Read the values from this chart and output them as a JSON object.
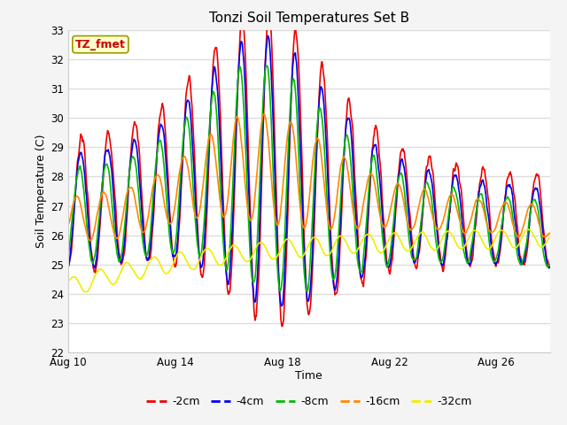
{
  "title": "Tonzi Soil Temperatures Set B",
  "xlabel": "Time",
  "ylabel": "Soil Temperature (C)",
  "ylim": [
    22.0,
    33.0
  ],
  "yticks": [
    22.0,
    23.0,
    24.0,
    25.0,
    26.0,
    27.0,
    28.0,
    29.0,
    30.0,
    31.0,
    32.0,
    33.0
  ],
  "xlim": [
    10,
    28
  ],
  "xtick_days": [
    10,
    14,
    18,
    22,
    26
  ],
  "xtick_labels": [
    "Aug 10",
    "Aug 14",
    "Aug 18",
    "Aug 22",
    "Aug 26"
  ],
  "series": [
    {
      "label": "-2cm",
      "color": "#ee0000",
      "lw": 1.2
    },
    {
      "label": "-4cm",
      "color": "#0000ee",
      "lw": 1.2
    },
    {
      "label": "-8cm",
      "color": "#00bb00",
      "lw": 1.2
    },
    {
      "label": "-16cm",
      "color": "#ff8800",
      "lw": 1.2
    },
    {
      "label": "-32cm",
      "color": "#eeee00",
      "lw": 1.2
    }
  ],
  "annotation_text": "TZ_fmet",
  "annotation_color": "#cc0000",
  "annotation_bg": "#ffffcc",
  "annotation_edgecolor": "#999900",
  "fig_bg": "#f4f4f4",
  "plot_bg": "#ffffff",
  "grid_color": "#dddddd",
  "figsize": [
    6.4,
    4.8
  ],
  "dpi": 100
}
